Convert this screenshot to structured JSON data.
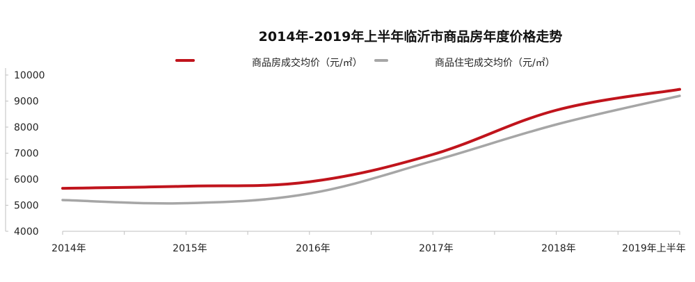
{
  "chart_data": {
    "type": "line",
    "title": "2014年-2019年上半年临沂市商品房年度价格走势",
    "categories": [
      "2014年",
      "2015年",
      "2016年",
      "2017年",
      "2018年",
      "2019年上半年"
    ],
    "series": [
      {
        "name": "商品房成交均价（元/㎡）",
        "color": "#c0141c",
        "values": [
          5650,
          5730,
          5900,
          6950,
          8650,
          9450
        ]
      },
      {
        "name": "商品住宅成交均价（元/㎡）",
        "color": "#a6a6a6",
        "values": [
          5200,
          5080,
          5450,
          6700,
          8100,
          9200
        ]
      }
    ],
    "ylim": [
      4000,
      10000
    ],
    "yticks": [
      "4000",
      "5000",
      "6000",
      "7000",
      "8000",
      "9000",
      "10000"
    ],
    "grid": false,
    "legend_position": "top"
  }
}
